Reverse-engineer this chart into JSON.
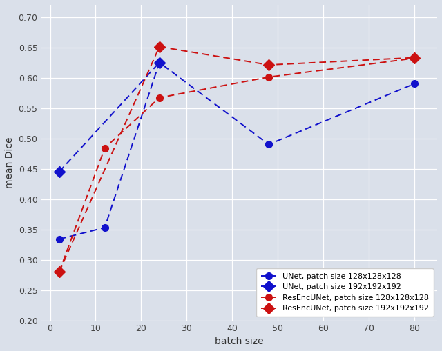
{
  "xlabel": "batch size",
  "ylabel": "mean Dice",
  "background_color": "#dae0ea",
  "plot_bg_color": "#dae0ea",
  "ylim": [
    0.2,
    0.72
  ],
  "yticks": [
    0.2,
    0.25,
    0.3,
    0.35,
    0.4,
    0.45,
    0.5,
    0.55,
    0.6,
    0.65,
    0.7
  ],
  "xlim": [
    -2,
    85
  ],
  "xticks": [
    0,
    10,
    20,
    30,
    40,
    50,
    60,
    70,
    80
  ],
  "series": [
    {
      "label": "UNet, patch size 128x128x128",
      "color": "#1111cc",
      "marker": "o",
      "markersize": 7,
      "x": [
        2,
        12,
        24,
        48,
        80
      ],
      "y": [
        0.334,
        0.353,
        0.625,
        0.49,
        0.59
      ]
    },
    {
      "label": "UNet, patch size 192x192x192",
      "color": "#1111cc",
      "marker": "D",
      "markersize": 8,
      "x": [
        2,
        24
      ],
      "y": [
        0.445,
        0.625
      ]
    },
    {
      "label": "ResEncUNet, patch size 128x128x128",
      "color": "#cc1111",
      "marker": "o",
      "markersize": 7,
      "x": [
        2,
        12,
        24,
        48,
        80
      ],
      "y": [
        0.28,
        0.484,
        0.567,
        0.601,
        0.632
      ]
    },
    {
      "label": "ResEncUNet, patch size 192x192x192",
      "color": "#cc1111",
      "marker": "D",
      "markersize": 8,
      "x": [
        2,
        24,
        48,
        80
      ],
      "y": [
        0.28,
        0.651,
        0.621,
        0.633
      ]
    }
  ]
}
